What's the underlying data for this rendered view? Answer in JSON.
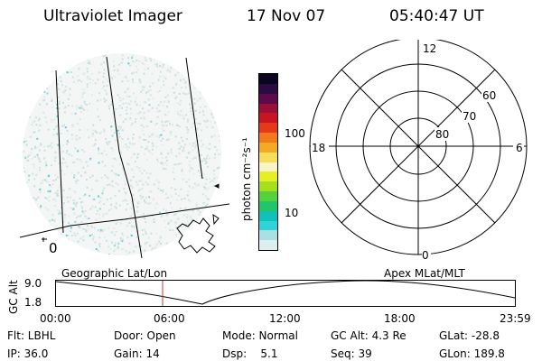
{
  "header": {
    "instrument": "Ultraviolet Imager",
    "date": "17 Nov 07",
    "time": "05:40:47 UT"
  },
  "colorbar": {
    "unit_label": "photon cm⁻²s⁻¹",
    "ticks": [
      "100",
      "10"
    ],
    "colors": [
      "#ddeeee",
      "#a8e0e6",
      "#2fd3da",
      "#0fc1b8",
      "#22c66a",
      "#54d23c",
      "#a5e01f",
      "#e7ef24",
      "#f9f4c4",
      "#f7de5a",
      "#f5aa23",
      "#f27a1a",
      "#e5391a",
      "#c91424",
      "#9a0e3a",
      "#5b0a4a",
      "#2b0b42",
      "#0a0520"
    ]
  },
  "geo_panel": {
    "grid_label": "0",
    "marker": "◂"
  },
  "polar_plot": {
    "mlt_labels": {
      "top": "12",
      "left": "18",
      "right": "6",
      "bottom": "0"
    },
    "lat_labels": [
      "60",
      "70",
      "80"
    ]
  },
  "timeline": {
    "left_label": "Geographic Lat/Lon",
    "right_label": "Apex MLat/MLT",
    "axis_title": "GC Alt",
    "y_max": "9.0",
    "y_min": "1.8",
    "x_ticks": [
      "00:00",
      "06:00",
      "12:00",
      "18:00",
      "23:59"
    ],
    "current_time_marker_color": "#c0392b"
  },
  "footer": {
    "col1": [
      "Flt: LBHL",
      "IP: 36.0"
    ],
    "col2": [
      "Door: Open",
      "Gain: 14"
    ],
    "col3": [
      "Mode: Normal",
      "Dsp:    5.1"
    ],
    "col4": [
      "GC Alt: 4.3 Re",
      "Seq: 39"
    ],
    "col5": [
      "GLat: -28.8",
      "GLon: 189.8"
    ]
  }
}
